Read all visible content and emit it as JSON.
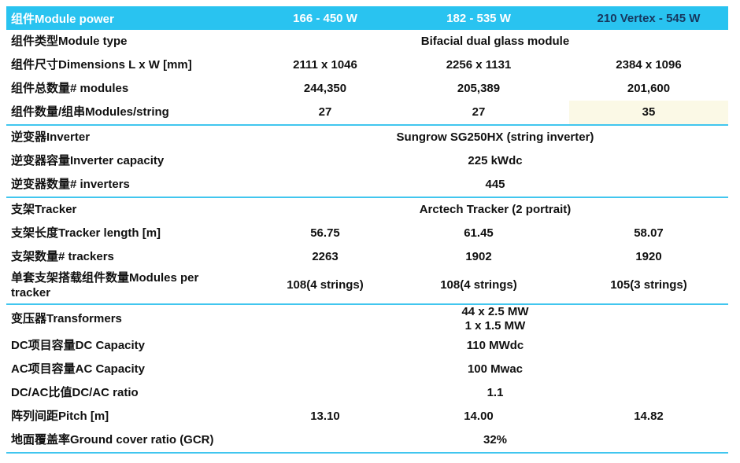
{
  "table": {
    "header": {
      "label": "组件Module power",
      "columns": [
        "166 - 450 W",
        "182 - 535 W",
        "210 Vertex - 545 W"
      ]
    },
    "rows": [
      {
        "label": "组件类型Module type",
        "span": "Bifacial dual glass module"
      },
      {
        "label": "组件尺寸Dimensions L x W [mm]",
        "values": [
          "2111 x 1046",
          "2256 x 1131",
          "2384 x 1096"
        ]
      },
      {
        "label": "组件总数量# modules",
        "values": [
          "244,350",
          "205,389",
          "201,600"
        ]
      },
      {
        "label": "组件数量/组串Modules/string",
        "values": [
          "27",
          "27",
          "35"
        ],
        "highlight": 2,
        "divider_after": true
      },
      {
        "label": "逆变器Inverter",
        "span": "Sungrow SG250HX (string inverter)"
      },
      {
        "label": "逆变器容量Inverter capacity",
        "span": "225 kWdc"
      },
      {
        "label": "逆变器数量# inverters",
        "span": "445",
        "divider_after": true
      },
      {
        "label": "支架Tracker",
        "span": "Arctech Tracker (2 portrait)"
      },
      {
        "label": "支架长度Tracker length [m]",
        "values": [
          "56.75",
          "61.45",
          "58.07"
        ]
      },
      {
        "label": "支架数量# trackers",
        "values": [
          "2263",
          "1902",
          "1920"
        ]
      },
      {
        "label": "单套支架搭载组件数量Modules per tracker",
        "values": [
          "108(4 strings)",
          "108(4 strings)",
          "105(3 strings)"
        ],
        "divider_after": true
      },
      {
        "label": "变压器Transformers",
        "span_lines": [
          "44 x 2.5 MW",
          "1 x 1.5 MW"
        ]
      },
      {
        "label": "DC项目容量DC Capacity",
        "span": "110 MWdc"
      },
      {
        "label": "AC项目容量AC Capacity",
        "span": "100 Mwac"
      },
      {
        "label": "DC/AC比值DC/AC ratio",
        "span": "1.1"
      },
      {
        "label": "阵列间距Pitch [m]",
        "values": [
          "13.10",
          "14.00",
          "14.82"
        ]
      },
      {
        "label": "地面覆盖率Ground cover ratio (GCR)",
        "span": "32%",
        "divider_after": true
      }
    ],
    "colors": {
      "header_bg": "#29C3F0",
      "header_text": "#FFFFFF",
      "header_text_dark": "#17375E",
      "divider": "#41C6EF",
      "highlight_bg": "#FBF9E6",
      "body_text": "#111111"
    }
  }
}
